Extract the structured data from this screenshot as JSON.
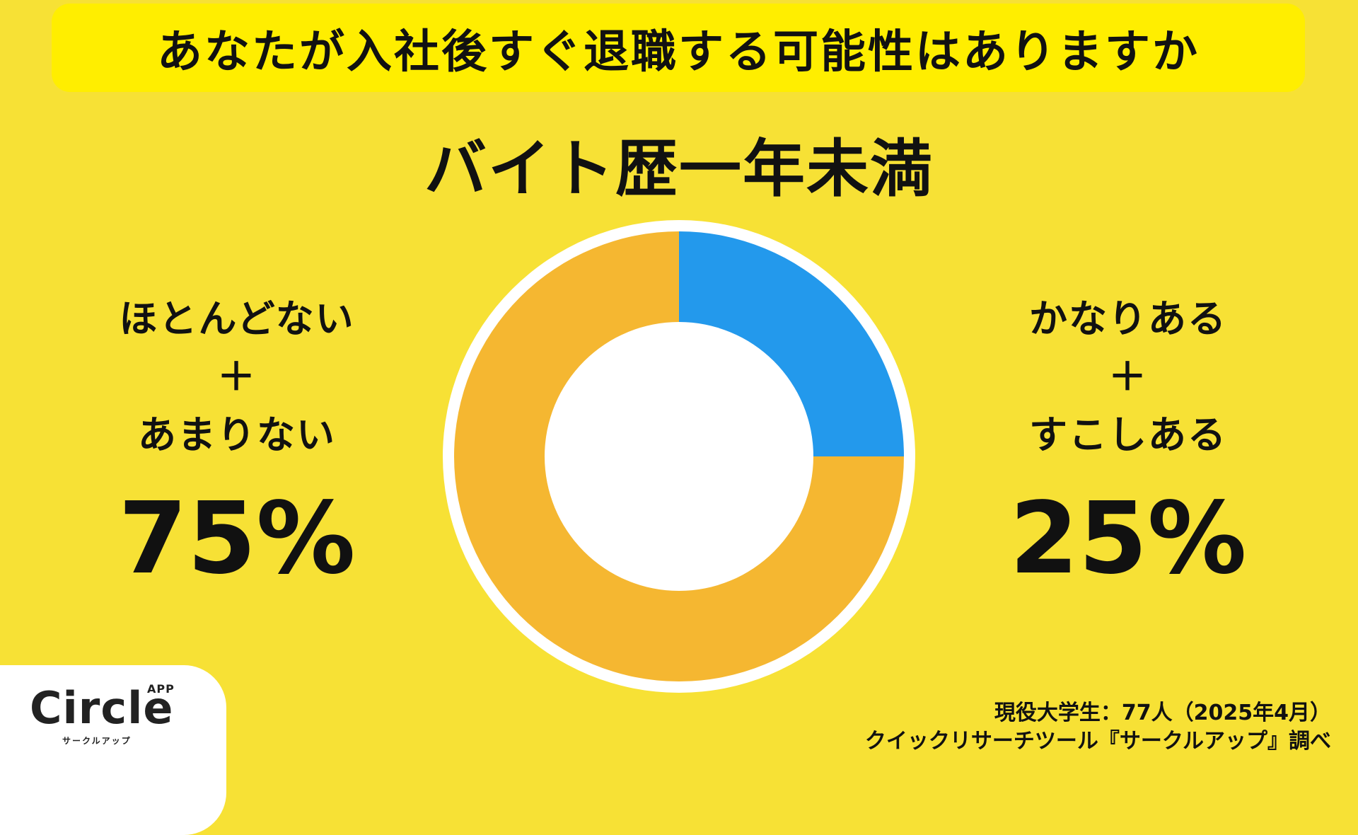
{
  "header": {
    "question": "あなたが入社後すぐ退職する可能性はありますか"
  },
  "chart_data": {
    "type": "pie",
    "donut": true,
    "title": "バイト歴一年未満",
    "slices": [
      {
        "label": "かなりある＋すこしある",
        "value": 25,
        "color": "#2399EC"
      },
      {
        "label": "ほとんどない＋あまりない",
        "value": 75,
        "color": "#F5B731"
      }
    ]
  },
  "left_label": {
    "line1": "ほとんどない",
    "line2": "＋",
    "line3": "あまりない",
    "percent": "75%"
  },
  "right_label": {
    "line1": "かなりある",
    "line2": "＋",
    "line3": "すこしある",
    "percent": "25%"
  },
  "footer": {
    "line1": "現役大学生：77人（2025年4月）",
    "line2": "クイックリサーチツール『サークルアップ』調べ"
  },
  "logo": {
    "wordmark": "Circle",
    "badge": "APP",
    "tagline": "サークルアップ"
  },
  "colors": {
    "background": "#F7E135",
    "banner": "#FFEE00",
    "blue": "#2399EC",
    "orange": "#F5B731",
    "white": "#FFFFFF"
  }
}
